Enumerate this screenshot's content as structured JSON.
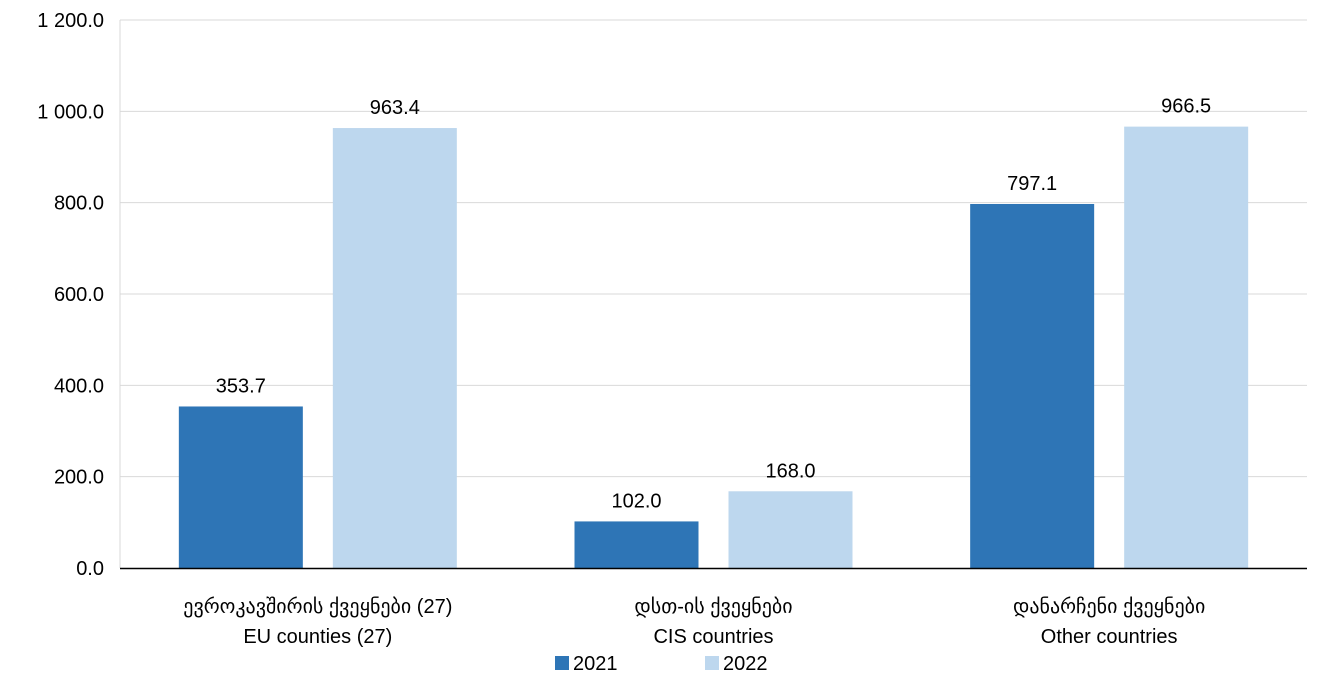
{
  "chart_data": {
    "type": "bar",
    "categories": [
      [
        "ევროკავშირის ქვეყნები (27)",
        "EU counties (27)"
      ],
      [
        "დსთ-ის ქვეყნები",
        "CIS countries"
      ],
      [
        "დანარჩენი ქვეყნები",
        "Other countries"
      ]
    ],
    "series": [
      {
        "name": "2021",
        "values": [
          353.7,
          102.0,
          797.1
        ],
        "labels": [
          "353.7",
          "102.0",
          "797.1"
        ],
        "color": "#2e75b6"
      },
      {
        "name": "2022",
        "values": [
          963.4,
          168.0,
          966.5
        ],
        "labels": [
          "963.4",
          "168.0",
          "966.5"
        ],
        "color": "#bdd7ee"
      }
    ],
    "ylim": [
      0,
      1200
    ],
    "yticks": [
      0,
      200,
      400,
      600,
      800,
      1000,
      1200
    ],
    "ytick_labels": [
      "0.0",
      "200.0",
      "400.0",
      "600.0",
      "800.0",
      "1 000.0",
      "1 200.0"
    ],
    "grid": true,
    "legend_position": "bottom",
    "title": "",
    "xlabel": "",
    "ylabel": ""
  }
}
